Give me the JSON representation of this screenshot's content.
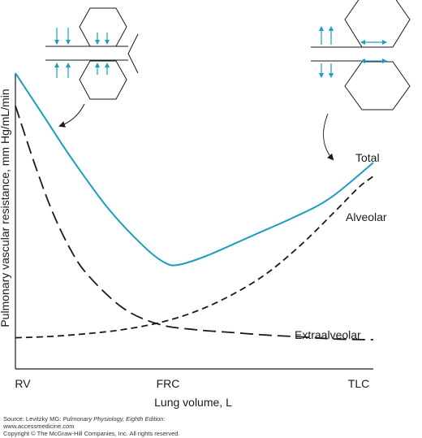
{
  "chart_data": {
    "type": "line",
    "title": "",
    "xlabel": "Lung volume, L",
    "ylabel": "Pulmonary vascular resistance, mm Hg/mL/min",
    "x_ticks": [
      "RV",
      "FRC",
      "TLC"
    ],
    "xlim": [
      0,
      100
    ],
    "ylim": [
      0,
      100
    ],
    "grid": false,
    "legend": "series labelled directly on curves",
    "colors": {
      "total": "#1a9dbf",
      "other": "#1a1a1a"
    },
    "series": [
      {
        "name": "Total",
        "style": "solid",
        "x": [
          0,
          8,
          16,
          26,
          36,
          42,
          46,
          54,
          66,
          78,
          88,
          100
        ],
        "y": [
          100,
          84,
          68,
          50,
          36,
          30,
          29.5,
          33,
          40,
          47,
          54,
          67
        ]
      },
      {
        "name": "Alveolar",
        "style": "dashed",
        "x": [
          0,
          10,
          20,
          30,
          40,
          50,
          60,
          70,
          80,
          90,
          96,
          100
        ],
        "y": [
          2.5,
          3,
          4,
          5.5,
          8,
          12,
          18,
          26,
          37,
          50,
          58,
          62
        ]
      },
      {
        "name": "Extraalveolar",
        "style": "long-dashed",
        "x": [
          0,
          5,
          10,
          15,
          20,
          30,
          40,
          50,
          60,
          70,
          80,
          90,
          100
        ],
        "y": [
          88,
          68,
          50,
          36,
          26,
          13.5,
          7.5,
          5.5,
          4.5,
          3.5,
          2.8,
          2,
          1.8
        ]
      }
    ]
  },
  "credit": {
    "line1_prefix": "Source: Levitzky MG: ",
    "line1_title": "Pulmonary Physiology, Eighth Edition:",
    "line2": "www.accessmedicine.com",
    "line3": "Copyright © The McGraw-Hill Companies, Inc. All rights reserved."
  }
}
